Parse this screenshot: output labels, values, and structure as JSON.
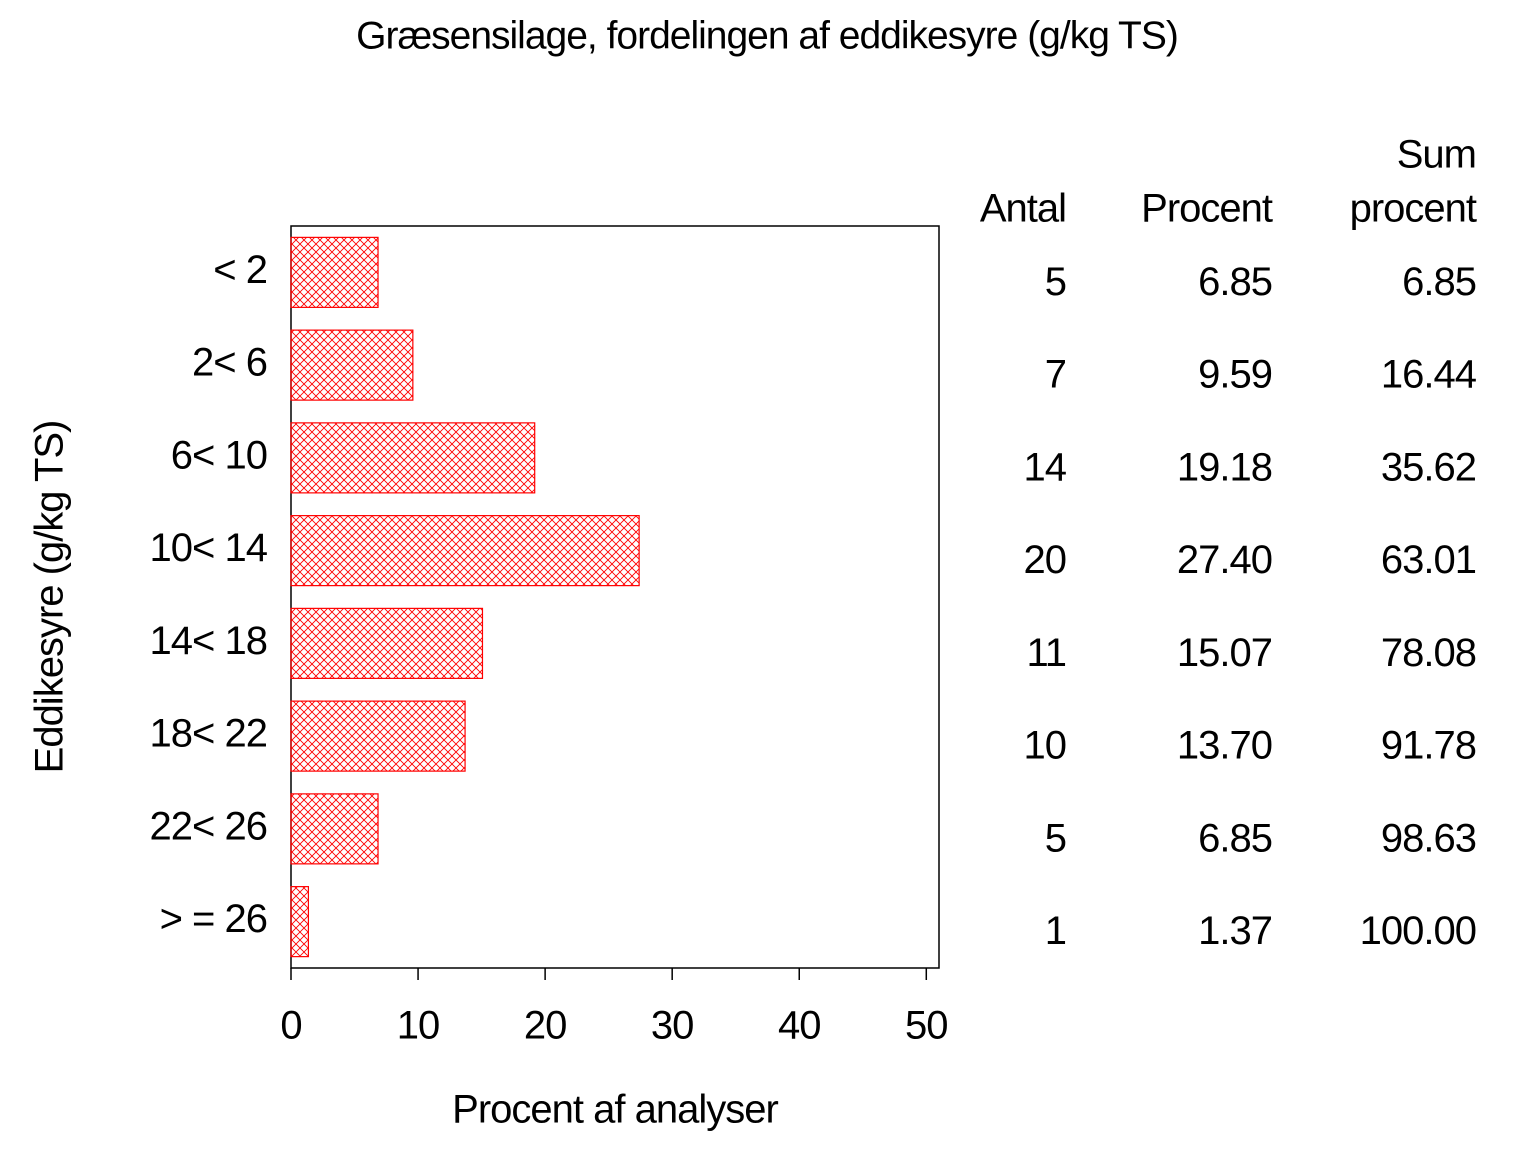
{
  "chart_data": {
    "type": "hbar",
    "title": "Græsensilage, fordelingen af eddikesyre (g/kg TS)",
    "x_label": "Procent af analyser",
    "y_label": "Eddikesyre (g/kg TS)",
    "categories": [
      "< 2",
      "2< 6",
      "6< 10",
      "10< 14",
      "14< 18",
      "18< 22",
      "22< 26",
      "> = 26"
    ],
    "values": [
      6.85,
      9.59,
      19.18,
      27.4,
      15.07,
      13.7,
      6.85,
      1.37
    ],
    "value_labels": [
      "6.85",
      "9.59",
      "19.18",
      "27.40",
      "15.07",
      "13.70",
      "6.85",
      "1.37"
    ],
    "color": "#ff0000",
    "xlim": [
      0,
      51
    ],
    "xticks": [
      0,
      10,
      20,
      30,
      40,
      50
    ],
    "table": {
      "columns": [
        {
          "header": [
            "Antal"
          ],
          "values": [
            5,
            7,
            14,
            20,
            11,
            10,
            5,
            1
          ]
        },
        {
          "header": [
            "Procent"
          ]
        },
        {
          "header": [
            "Sum",
            "procent"
          ],
          "values": [
            "6.85",
            "16.44",
            "35.62",
            "63.01",
            "78.08",
            "91.78",
            "98.63",
            "100.00"
          ]
        }
      ]
    }
  }
}
